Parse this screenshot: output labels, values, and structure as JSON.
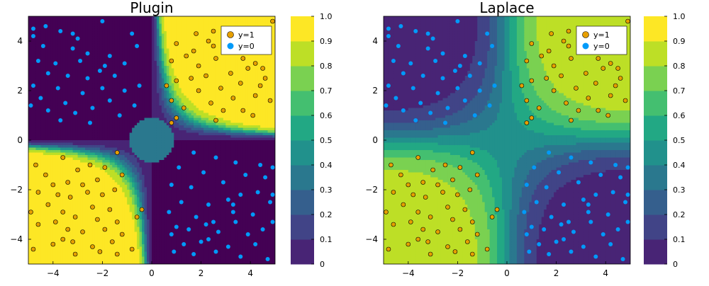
{
  "colorscale": [
    "#440154",
    "#482475",
    "#414487",
    "#355f8d",
    "#2a788e",
    "#21918c",
    "#22a884",
    "#44bf70",
    "#7ad151",
    "#bddf26",
    "#fde725"
  ],
  "class_colors": {
    "y1": "#e69f00",
    "y0": "#009af9"
  },
  "chart_data": [
    {
      "type": "heatmap",
      "title": "Plugin",
      "model": "plugin",
      "xlim": [
        -5,
        5
      ],
      "ylim": [
        -5,
        5
      ],
      "xticks": [
        -4,
        -2,
        0,
        2,
        4
      ],
      "yticks": [
        -4,
        -2,
        0,
        2,
        4
      ],
      "xtick_labels": [
        "−4",
        "−2",
        "0",
        "2",
        "4"
      ],
      "ytick_labels": [
        "−4",
        "−2",
        "0",
        "2",
        "4"
      ],
      "colorbar": {
        "levels": [
          0,
          0.1,
          0.2,
          0.3,
          0.4,
          0.5,
          0.6,
          0.7,
          0.8,
          0.9,
          1.0
        ],
        "labels": [
          "0",
          "0.1",
          "0.2",
          "0.3",
          "0.4",
          "0.5",
          "0.6",
          "0.7",
          "0.8",
          "0.9",
          "1.0"
        ]
      },
      "legend": {
        "placement": "top-right",
        "entries": [
          "y=1",
          "y=0"
        ]
      }
    },
    {
      "type": "heatmap",
      "title": "Laplace",
      "model": "laplace",
      "xlim": [
        -5,
        5
      ],
      "ylim": [
        -5,
        5
      ],
      "xticks": [
        -4,
        -2,
        0,
        2,
        4
      ],
      "yticks": [
        -4,
        -2,
        0,
        2,
        4
      ],
      "xtick_labels": [
        "−4",
        "−2",
        "0",
        "2",
        "4"
      ],
      "ytick_labels": [
        "−4",
        "−2",
        "0",
        "2",
        "4"
      ],
      "colorbar": {
        "levels": [
          0,
          0.1,
          0.2,
          0.3,
          0.4,
          0.5,
          0.6,
          0.7,
          0.8,
          0.9,
          1.0
        ],
        "labels": [
          "0",
          "0.1",
          "0.2",
          "0.3",
          "0.4",
          "0.5",
          "0.6",
          "0.7",
          "0.8",
          "0.9",
          "1.0"
        ]
      },
      "legend": {
        "placement": "top-right",
        "entries": [
          "y=1",
          "y=0"
        ]
      }
    }
  ],
  "points": {
    "y1": [
      [
        1.8,
        4.3
      ],
      [
        2.5,
        4.4
      ],
      [
        3.3,
        4.2
      ],
      [
        4.9,
        4.8
      ],
      [
        4.4,
        4.1
      ],
      [
        1.0,
        3.9
      ],
      [
        1.7,
        3.6
      ],
      [
        2.5,
        3.8
      ],
      [
        3.0,
        3.6
      ],
      [
        3.7,
        3.3
      ],
      [
        1.4,
        3.4
      ],
      [
        4.2,
        3.1
      ],
      [
        0.8,
        3.2
      ],
      [
        1.9,
        3.0
      ],
      [
        2.6,
        3.3
      ],
      [
        3.9,
        2.9
      ],
      [
        3.2,
        2.7
      ],
      [
        2.2,
        2.6
      ],
      [
        4.6,
        2.5
      ],
      [
        1.0,
        2.4
      ],
      [
        1.6,
        2.5
      ],
      [
        3.6,
        2.3
      ],
      [
        4.4,
        2.2
      ],
      [
        2.8,
        2.1
      ],
      [
        0.6,
        2.2
      ],
      [
        1.9,
        2.0
      ],
      [
        3.3,
        1.7
      ],
      [
        2.4,
        1.5
      ],
      [
        4.2,
        1.8
      ],
      [
        4.8,
        1.6
      ],
      [
        0.8,
        1.6
      ],
      [
        1.3,
        1.3
      ],
      [
        3.7,
        1.2
      ],
      [
        2.9,
        1.2
      ],
      [
        1.0,
        0.9
      ],
      [
        2.6,
        0.8
      ],
      [
        4.1,
        1.0
      ],
      [
        0.8,
        0.7
      ],
      [
        4.5,
        2.9
      ],
      [
        2.3,
        4.0
      ],
      [
        -4.7,
        -1.0
      ],
      [
        -3.6,
        -0.7
      ],
      [
        -1.4,
        -0.5
      ],
      [
        -2.5,
        -1.0
      ],
      [
        -4.3,
        -1.4
      ],
      [
        -3.0,
        -1.2
      ],
      [
        -1.9,
        -1.1
      ],
      [
        -4.0,
        -1.8
      ],
      [
        -3.4,
        -1.7
      ],
      [
        -2.8,
        -1.8
      ],
      [
        -2.2,
        -1.6
      ],
      [
        -1.2,
        -1.4
      ],
      [
        -4.6,
        -2.1
      ],
      [
        -3.8,
        -2.2
      ],
      [
        -3.3,
        -2.3
      ],
      [
        -2.6,
        -2.1
      ],
      [
        -2.0,
        -2.2
      ],
      [
        -1.5,
        -2.0
      ],
      [
        -4.2,
        -2.6
      ],
      [
        -3.6,
        -2.9
      ],
      [
        -2.4,
        -2.7
      ],
      [
        -1.7,
        -2.8
      ],
      [
        -4.9,
        -2.9
      ],
      [
        -3.9,
        -3.3
      ],
      [
        -3.1,
        -3.1
      ],
      [
        -2.2,
        -3.2
      ],
      [
        -1.4,
        -3.3
      ],
      [
        -0.4,
        -2.8
      ],
      [
        -4.6,
        -3.4
      ],
      [
        -3.4,
        -3.6
      ],
      [
        -2.8,
        -3.7
      ],
      [
        -1.9,
        -3.6
      ],
      [
        -1.2,
        -3.8
      ],
      [
        -0.6,
        -3.1
      ],
      [
        -4.8,
        -4.4
      ],
      [
        -4.0,
        -4.2
      ],
      [
        -3.2,
        -4.1
      ],
      [
        -2.4,
        -4.3
      ],
      [
        -1.6,
        -4.1
      ],
      [
        -0.8,
        -4.4
      ],
      [
        -3.1,
        -4.6
      ],
      [
        -1.4,
        -4.6
      ],
      [
        -2.1,
        -4.5
      ],
      [
        -3.6,
        -4.0
      ]
    ],
    "y0": [
      [
        -4.8,
        4.5
      ],
      [
        -4.3,
        4.6
      ],
      [
        -3.7,
        4.4
      ],
      [
        -3.0,
        4.1
      ],
      [
        -2.0,
        4.8
      ],
      [
        -0.8,
        4.3
      ],
      [
        -4.8,
        4.2
      ],
      [
        -4.4,
        3.8
      ],
      [
        -3.2,
        3.7
      ],
      [
        -2.6,
        3.5
      ],
      [
        -1.7,
        3.4
      ],
      [
        -0.6,
        3.8
      ],
      [
        -4.6,
        3.2
      ],
      [
        -3.9,
        3.1
      ],
      [
        -2.9,
        3.2
      ],
      [
        -1.9,
        3.0
      ],
      [
        -1.1,
        3.1
      ],
      [
        -4.2,
        2.7
      ],
      [
        -3.4,
        2.6
      ],
      [
        -2.6,
        2.5
      ],
      [
        -1.5,
        2.6
      ],
      [
        -0.5,
        2.2
      ],
      [
        -4.8,
        2.2
      ],
      [
        -3.8,
        2.1
      ],
      [
        -2.8,
        1.9
      ],
      [
        -2.0,
        2.1
      ],
      [
        -1.1,
        2.0
      ],
      [
        -4.5,
        1.7
      ],
      [
        -3.5,
        1.5
      ],
      [
        -2.4,
        1.3
      ],
      [
        -1.7,
        1.6
      ],
      [
        -0.7,
        1.4
      ],
      [
        -4.2,
        1.2
      ],
      [
        -3.1,
        1.1
      ],
      [
        -1.3,
        1.0
      ],
      [
        -4.9,
        1.4
      ],
      [
        -3.7,
        0.8
      ],
      [
        -2.5,
        0.7
      ],
      [
        -2.1,
        2.8
      ],
      [
        -3.2,
        4.3
      ],
      [
        1.7,
        -0.5
      ],
      [
        2.6,
        -0.7
      ],
      [
        3.4,
        -0.9
      ],
      [
        4.4,
        -1.0
      ],
      [
        4.9,
        -1.1
      ],
      [
        1.1,
        -1.1
      ],
      [
        2.1,
        -1.3
      ],
      [
        3.8,
        -1.4
      ],
      [
        4.6,
        -1.5
      ],
      [
        0.8,
        -1.8
      ],
      [
        1.6,
        -1.9
      ],
      [
        2.9,
        -1.7
      ],
      [
        3.6,
        -2.2
      ],
      [
        4.3,
        -2.1
      ],
      [
        1.2,
        -2.5
      ],
      [
        2.3,
        -2.6
      ],
      [
        3.1,
        -2.4
      ],
      [
        4.8,
        -2.5
      ],
      [
        0.7,
        -2.9
      ],
      [
        1.8,
        -3.1
      ],
      [
        3.3,
        -2.9
      ],
      [
        4.1,
        -3.0
      ],
      [
        2.5,
        -3.3
      ],
      [
        4.9,
        -3.3
      ],
      [
        1.0,
        -3.5
      ],
      [
        1.5,
        -3.6
      ],
      [
        2.2,
        -3.4
      ],
      [
        3.4,
        -3.3
      ],
      [
        0.8,
        -3.8
      ],
      [
        2.7,
        -3.7
      ],
      [
        3.9,
        -3.8
      ],
      [
        4.5,
        -3.6
      ],
      [
        1.3,
        -4.2
      ],
      [
        2.0,
        -4.1
      ],
      [
        3.1,
        -4.3
      ],
      [
        4.2,
        -4.2
      ],
      [
        1.7,
        -4.6
      ],
      [
        2.6,
        -4.5
      ],
      [
        3.6,
        -4.7
      ],
      [
        4.7,
        -4.8
      ],
      [
        0.9,
        -4.5
      ],
      [
        2.3,
        -4.0
      ],
      [
        3.3,
        -2.6
      ],
      [
        4.9,
        -2.2
      ]
    ]
  }
}
